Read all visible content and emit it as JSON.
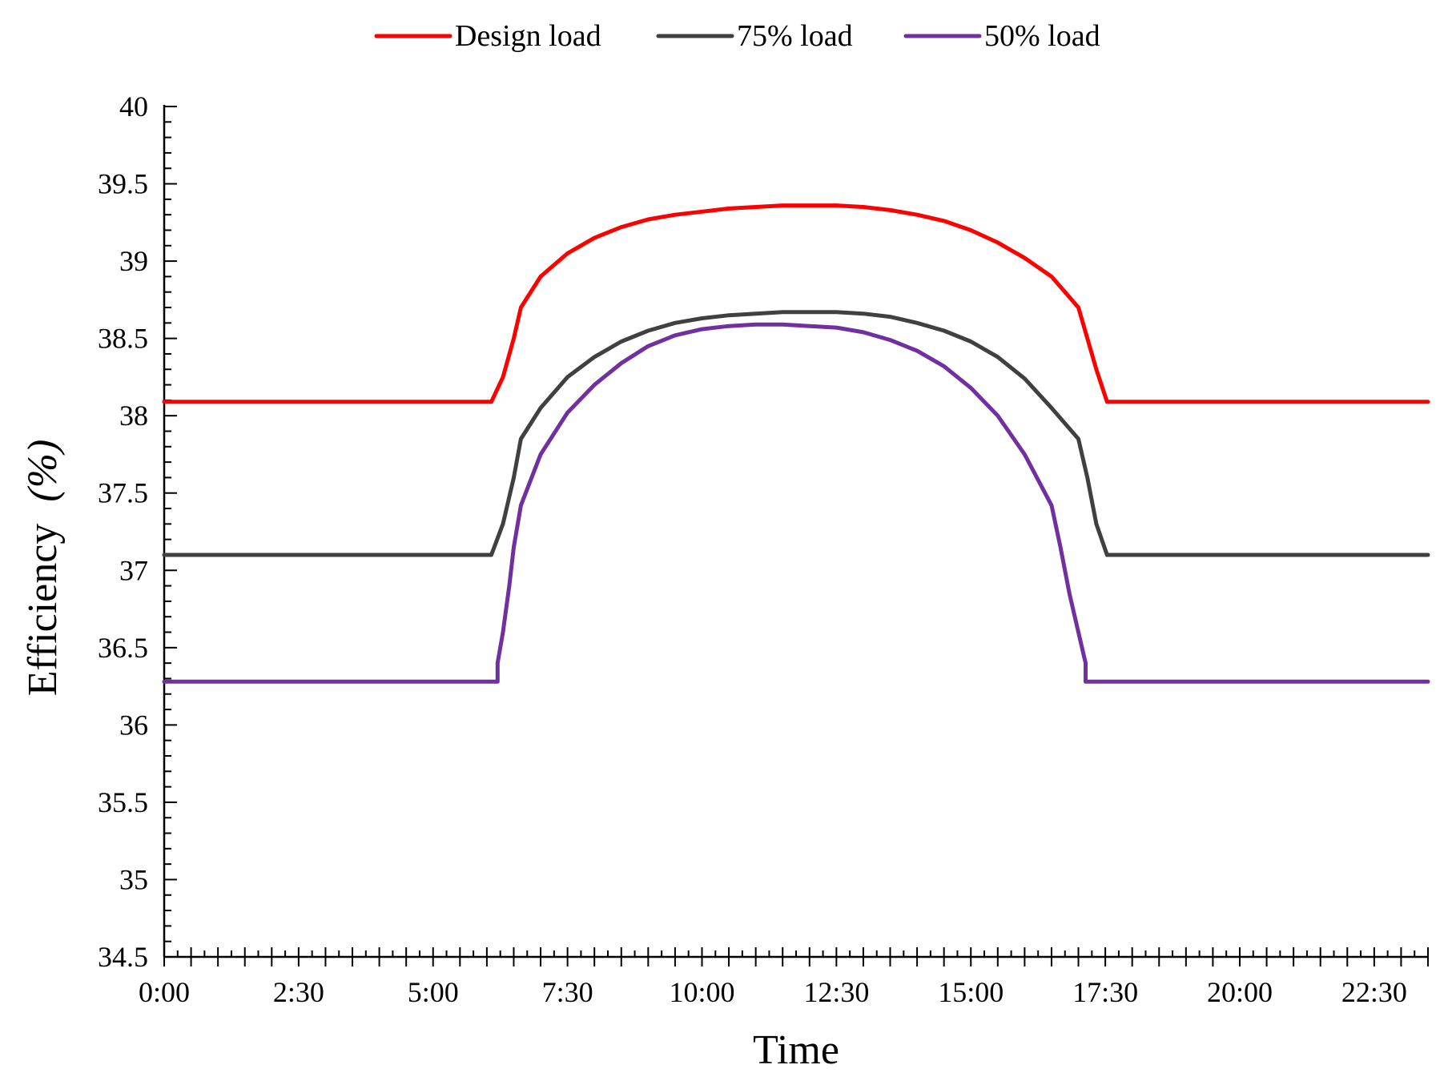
{
  "chart_data": {
    "type": "line",
    "title": "",
    "xlabel": "Time",
    "ylabel": "Efficiency",
    "ylabel_unit": "(%)",
    "xlim": [
      0,
      1410
    ],
    "ylim": [
      34.5,
      40
    ],
    "y_ticks": [
      {
        "value": 34.5,
        "label": "34.5"
      },
      {
        "value": 35,
        "label": "35"
      },
      {
        "value": 35.5,
        "label": "35.5"
      },
      {
        "value": 36,
        "label": "36"
      },
      {
        "value": 36.5,
        "label": "36.5"
      },
      {
        "value": 37,
        "label": "37"
      },
      {
        "value": 37.5,
        "label": "37.5"
      },
      {
        "value": 38,
        "label": "38"
      },
      {
        "value": 38.5,
        "label": "38.5"
      },
      {
        "value": 39,
        "label": "39"
      },
      {
        "value": 39.5,
        "label": "39.5"
      },
      {
        "value": 40,
        "label": "40"
      }
    ],
    "x_ticks": [
      {
        "value": 0,
        "label": "0:00"
      },
      {
        "value": 150,
        "label": "2:30"
      },
      {
        "value": 300,
        "label": "5:00"
      },
      {
        "value": 450,
        "label": "7:30"
      },
      {
        "value": 600,
        "label": "10:00"
      },
      {
        "value": 750,
        "label": "12:30"
      },
      {
        "value": 900,
        "label": "15:00"
      },
      {
        "value": 1050,
        "label": "17:30"
      },
      {
        "value": 1200,
        "label": "20:00"
      },
      {
        "value": 1350,
        "label": "22:30"
      }
    ],
    "grid": false,
    "legend_position": "top",
    "series": [
      {
        "name": "Design load",
        "color": "#ff0000",
        "points": [
          [
            0,
            38.09
          ],
          [
            365,
            38.09
          ],
          [
            378,
            38.25
          ],
          [
            390,
            38.5
          ],
          [
            398,
            38.7
          ],
          [
            420,
            38.9
          ],
          [
            450,
            39.05
          ],
          [
            480,
            39.15
          ],
          [
            510,
            39.22
          ],
          [
            540,
            39.27
          ],
          [
            570,
            39.3
          ],
          [
            600,
            39.32
          ],
          [
            630,
            39.34
          ],
          [
            660,
            39.35
          ],
          [
            690,
            39.36
          ],
          [
            720,
            39.36
          ],
          [
            750,
            39.36
          ],
          [
            780,
            39.35
          ],
          [
            810,
            39.33
          ],
          [
            840,
            39.3
          ],
          [
            870,
            39.26
          ],
          [
            900,
            39.2
          ],
          [
            930,
            39.12
          ],
          [
            960,
            39.02
          ],
          [
            990,
            38.9
          ],
          [
            1020,
            38.7
          ],
          [
            1030,
            38.5
          ],
          [
            1040,
            38.3
          ],
          [
            1052,
            38.09
          ],
          [
            1410,
            38.09
          ]
        ]
      },
      {
        "name": "75% load",
        "color": "#404040",
        "points": [
          [
            0,
            37.1
          ],
          [
            365,
            37.1
          ],
          [
            378,
            37.3
          ],
          [
            390,
            37.6
          ],
          [
            398,
            37.85
          ],
          [
            420,
            38.05
          ],
          [
            450,
            38.25
          ],
          [
            480,
            38.38
          ],
          [
            510,
            38.48
          ],
          [
            540,
            38.55
          ],
          [
            570,
            38.6
          ],
          [
            600,
            38.63
          ],
          [
            630,
            38.65
          ],
          [
            660,
            38.66
          ],
          [
            690,
            38.67
          ],
          [
            720,
            38.67
          ],
          [
            750,
            38.67
          ],
          [
            780,
            38.66
          ],
          [
            810,
            38.64
          ],
          [
            840,
            38.6
          ],
          [
            870,
            38.55
          ],
          [
            900,
            38.48
          ],
          [
            930,
            38.38
          ],
          [
            960,
            38.24
          ],
          [
            990,
            38.05
          ],
          [
            1020,
            37.85
          ],
          [
            1030,
            37.6
          ],
          [
            1040,
            37.3
          ],
          [
            1052,
            37.1
          ],
          [
            1410,
            37.1
          ]
        ]
      },
      {
        "name": "50% load",
        "color": "#7030a0",
        "points": [
          [
            0,
            36.28
          ],
          [
            372,
            36.28
          ],
          [
            372,
            36.4
          ],
          [
            378,
            36.6
          ],
          [
            385,
            36.9
          ],
          [
            390,
            37.15
          ],
          [
            398,
            37.42
          ],
          [
            420,
            37.75
          ],
          [
            450,
            38.02
          ],
          [
            480,
            38.2
          ],
          [
            510,
            38.34
          ],
          [
            540,
            38.45
          ],
          [
            570,
            38.52
          ],
          [
            600,
            38.56
          ],
          [
            630,
            38.58
          ],
          [
            660,
            38.59
          ],
          [
            690,
            38.59
          ],
          [
            720,
            38.58
          ],
          [
            750,
            38.57
          ],
          [
            780,
            38.54
          ],
          [
            810,
            38.49
          ],
          [
            840,
            38.42
          ],
          [
            870,
            38.32
          ],
          [
            900,
            38.18
          ],
          [
            930,
            38.0
          ],
          [
            960,
            37.75
          ],
          [
            990,
            37.42
          ],
          [
            1000,
            37.15
          ],
          [
            1010,
            36.85
          ],
          [
            1020,
            36.6
          ],
          [
            1028,
            36.4
          ],
          [
            1028,
            36.28
          ],
          [
            1410,
            36.28
          ]
        ]
      }
    ]
  }
}
